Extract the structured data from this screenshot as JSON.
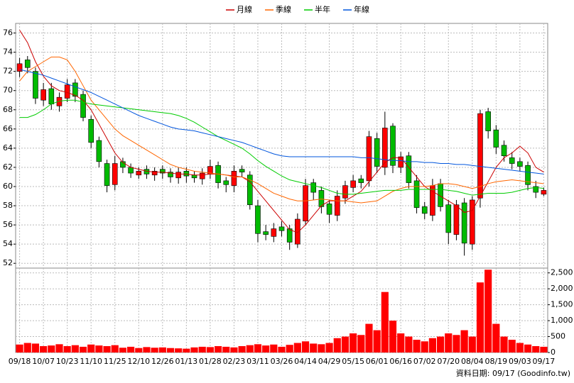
{
  "chart_data": [
    {
      "type": "candlestick",
      "categories": [
        "09/18",
        null,
        null,
        "10/07",
        null,
        null,
        "10/23",
        null,
        null,
        "11/10",
        null,
        null,
        "11/25",
        null,
        null,
        "12/10",
        null,
        null,
        "12/26",
        null,
        null,
        "01/13",
        null,
        null,
        "01/28",
        null,
        null,
        "02/23",
        null,
        null,
        "03/11",
        null,
        null,
        "03/26",
        null,
        null,
        "04/14",
        null,
        null,
        "04/29",
        null,
        null,
        "05/15",
        null,
        null,
        "06/01",
        null,
        null,
        "06/16",
        null,
        null,
        "07/02",
        null,
        null,
        "07/20",
        null,
        null,
        "08/04",
        null,
        null,
        "08/19",
        null,
        null,
        "09/03",
        null,
        null,
        "09/17"
      ],
      "open": [
        72.0,
        73.2,
        72.0,
        69.0,
        70.2,
        68.4,
        69.2,
        70.8,
        69.6,
        67.0,
        64.8,
        62.4,
        60.2,
        62.6,
        62.0,
        61.2,
        61.8,
        61.2,
        61.8,
        61.5,
        60.9,
        61.6,
        61.2,
        60.8,
        61.3,
        62.2,
        60.6,
        60.1,
        61.8,
        61.2,
        58.0,
        55.3,
        54.8,
        55.8,
        55.6,
        54.0,
        56.4,
        60.4,
        59.6,
        58.2,
        57.0,
        58.8,
        59.9,
        60.8,
        60.6,
        65.0,
        62.0,
        66.3,
        62.0,
        63.2,
        60.6,
        57.9,
        57.0,
        60.3,
        58.1,
        55.0,
        58.3,
        54.0,
        58.8,
        67.8,
        65.9,
        64.3,
        63.0,
        62.6,
        62.2,
        60.0,
        59.2
      ],
      "high": [
        73.4,
        73.6,
        72.4,
        70.8,
        70.8,
        69.8,
        71.2,
        71.2,
        70.0,
        67.4,
        65.2,
        62.8,
        63.2,
        63.0,
        62.4,
        62.0,
        62.2,
        62.0,
        62.2,
        61.9,
        62.0,
        62.0,
        61.6,
        61.9,
        62.8,
        62.6,
        61.0,
        62.2,
        62.2,
        61.6,
        58.6,
        56.0,
        56.2,
        56.4,
        56.0,
        57.2,
        60.8,
        60.8,
        60.0,
        58.6,
        59.6,
        60.6,
        61.2,
        61.2,
        65.8,
        65.6,
        67.8,
        66.6,
        63.6,
        63.6,
        61.2,
        58.4,
        60.8,
        60.8,
        58.6,
        58.6,
        58.8,
        59.0,
        68.0,
        68.2,
        66.4,
        64.8,
        63.6,
        63.0,
        62.6,
        60.6,
        59.9
      ],
      "low": [
        71.4,
        71.8,
        68.6,
        68.4,
        68.0,
        67.8,
        68.8,
        68.8,
        66.8,
        64.0,
        62.0,
        59.4,
        59.6,
        61.4,
        60.9,
        60.8,
        60.8,
        60.6,
        60.8,
        60.4,
        60.3,
        60.4,
        60.4,
        60.2,
        60.8,
        59.8,
        59.4,
        59.4,
        61.0,
        57.6,
        54.2,
        54.4,
        54.2,
        54.8,
        53.4,
        53.6,
        56.0,
        58.6,
        57.2,
        56.2,
        56.4,
        58.2,
        59.4,
        59.8,
        60.0,
        61.4,
        61.2,
        61.4,
        61.4,
        59.8,
        57.2,
        56.6,
        56.4,
        57.4,
        54.0,
        54.4,
        52.8,
        53.4,
        57.8,
        65.0,
        63.4,
        62.6,
        61.8,
        61.6,
        59.6,
        58.8,
        59.0
      ],
      "close": [
        72.8,
        72.4,
        69.2,
        70.1,
        68.6,
        69.3,
        70.6,
        69.4,
        67.2,
        64.6,
        62.6,
        60.1,
        62.4,
        62.0,
        61.4,
        61.6,
        61.3,
        61.6,
        61.4,
        61.0,
        61.5,
        61.1,
        60.9,
        61.4,
        62.1,
        60.4,
        60.2,
        61.6,
        61.5,
        58.1,
        55.1,
        55.0,
        55.6,
        55.4,
        54.2,
        56.6,
        60.1,
        59.4,
        57.9,
        57.1,
        59.0,
        60.1,
        60.6,
        60.4,
        65.2,
        62.1,
        66.1,
        62.2,
        63.1,
        60.4,
        57.8,
        57.2,
        60.1,
        57.9,
        55.2,
        58.1,
        54.1,
        58.6,
        67.6,
        65.8,
        64.1,
        63.2,
        62.4,
        62.1,
        60.2,
        59.4,
        59.6
      ],
      "up_color": "#ff0000",
      "down_color": "#00bb00",
      "series": [
        {
          "name": "月線",
          "color": "#cc0000",
          "values": [
            76.3,
            75,
            73,
            71.5,
            70.5,
            70,
            69.8,
            69.5,
            69,
            68,
            66.5,
            65,
            63.5,
            62.5,
            62,
            61.8,
            61.6,
            61.5,
            61.5,
            61.4,
            61.3,
            61.3,
            61.2,
            61.2,
            61.3,
            61.3,
            61.2,
            61.1,
            61,
            60.5,
            59.5,
            58.5,
            57.5,
            56.5,
            55.5,
            55.2,
            56,
            57,
            58,
            58.5,
            58.5,
            58.5,
            59,
            59.5,
            60.5,
            61.5,
            62.5,
            63,
            63,
            62,
            61,
            60,
            59.5,
            59,
            58.5,
            58,
            57.3,
            57.5,
            59,
            60.5,
            62,
            63,
            63.5,
            64.2,
            63.5,
            62,
            61.5
          ]
        },
        {
          "name": "季線",
          "color": "#ff6600",
          "values": [
            71,
            72,
            72.5,
            73,
            73.5,
            73.5,
            73.2,
            72,
            70.5,
            69,
            68,
            67,
            66,
            65.3,
            64.8,
            64.3,
            63.8,
            63.3,
            62.8,
            62.3,
            62,
            61.8,
            61.6,
            61.5,
            61.4,
            61.3,
            61.2,
            61,
            61,
            60.7,
            60.3,
            59.8,
            59.3,
            59,
            58.7,
            58.5,
            58.5,
            58.6,
            58.7,
            58.6,
            58.5,
            58.5,
            58.4,
            58.3,
            58.4,
            58.5,
            59,
            59.5,
            59.8,
            60,
            60,
            60,
            60.1,
            60.3,
            60.3,
            60.2,
            60,
            59.8,
            60,
            60.3,
            60.5,
            60.6,
            60.7,
            60.6,
            60.5,
            60.4,
            60.3
          ]
        },
        {
          "name": "半年",
          "color": "#00cc00",
          "values": [
            67.2,
            67.2,
            67.5,
            68,
            68.6,
            68.9,
            69,
            69,
            68.8,
            68.6,
            68.5,
            68.4,
            68.3,
            68.2,
            68.1,
            68,
            67.9,
            67.8,
            67.7,
            67.6,
            67.4,
            67.1,
            66.7,
            66.2,
            65.7,
            65.2,
            64.8,
            64.4,
            64,
            63.4,
            62.7,
            62.1,
            61.6,
            61.1,
            60.7,
            60.5,
            60.3,
            60.1,
            59.9,
            59.6,
            59.3,
            59.2,
            59.2,
            59.3,
            59.4,
            59.5,
            59.6,
            59.6,
            59.6,
            59.7,
            59.7,
            59.7,
            59.7,
            59.7,
            59.6,
            59.5,
            59.3,
            59.1,
            59.2,
            59.3,
            59.3,
            59.3,
            59.4,
            59.6,
            59.8,
            59.9,
            59.8
          ]
        },
        {
          "name": "年線",
          "color": "#0055dd",
          "values": [
            72.2,
            72,
            71.8,
            71.6,
            71.3,
            71,
            70.7,
            70.4,
            70.1,
            69.8,
            69.4,
            69,
            68.6,
            68.2,
            67.8,
            67.4,
            67.1,
            66.8,
            66.5,
            66.2,
            66,
            65.9,
            65.8,
            65.6,
            65.4,
            65.2,
            65,
            64.8,
            64.6,
            64.3,
            64,
            63.7,
            63.4,
            63.2,
            63.1,
            63.1,
            63.1,
            63.1,
            63.1,
            63.1,
            63.1,
            63.1,
            63.1,
            63,
            63,
            62.9,
            62.8,
            62.7,
            62.7,
            62.6,
            62.6,
            62.5,
            62.5,
            62.4,
            62.4,
            62.3,
            62.3,
            62.2,
            62.1,
            62,
            61.9,
            61.8,
            61.7,
            61.6,
            61.5,
            61.4,
            61.3
          ]
        }
      ],
      "ylim": [
        51.5,
        77.0
      ],
      "yticks": [
        52,
        54,
        56,
        58,
        60,
        62,
        64,
        66,
        68,
        70,
        72,
        74,
        76
      ],
      "grid": true
    },
    {
      "type": "bar",
      "color": "#ff0000",
      "values": [
        250,
        300,
        280,
        200,
        220,
        260,
        200,
        230,
        180,
        250,
        220,
        200,
        230,
        150,
        180,
        140,
        170,
        150,
        160,
        140,
        130,
        120,
        160,
        180,
        170,
        200,
        180,
        160,
        200,
        230,
        260,
        220,
        250,
        180,
        240,
        300,
        350,
        280,
        260,
        300,
        450,
        500,
        600,
        550,
        900,
        700,
        1900,
        1000,
        600,
        500,
        400,
        350,
        450,
        500,
        600,
        550,
        700,
        500,
        2200,
        2600,
        900,
        500,
        400,
        300,
        250,
        200,
        180
      ],
      "ylim": [
        0,
        2650
      ],
      "yticks": [
        0,
        500,
        {
          "value": 1000,
          "label": "1,000"
        },
        {
          "value": 1500,
          "label": "1,500"
        },
        {
          "value": 2000,
          "label": "2,000"
        },
        {
          "value": 2500,
          "label": "2,500"
        }
      ],
      "grid": true
    }
  ],
  "footer": "資料日期: 09/17 (Goodinfo.tw)"
}
